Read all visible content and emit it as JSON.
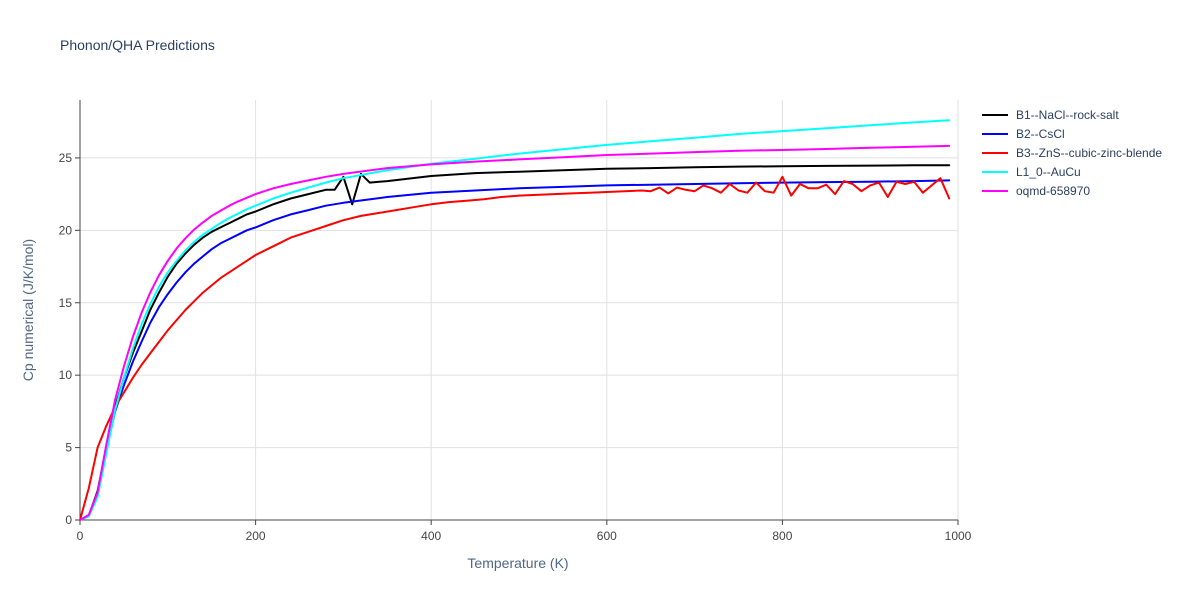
{
  "chart_data": {
    "type": "line",
    "title": "Phonon/QHA Predictions",
    "xlabel": "Temperature (K)",
    "ylabel": "Cp numerical (J/K/mol)",
    "xlim": [
      0,
      1000
    ],
    "ylim": [
      0,
      29
    ],
    "xticks": [
      0,
      200,
      400,
      600,
      800,
      1000
    ],
    "yticks": [
      0,
      5,
      10,
      15,
      20,
      25
    ],
    "xtick_labels": [
      "0",
      "200",
      "400",
      "600",
      "800",
      "1000"
    ],
    "ytick_labels": [
      "0",
      "5",
      "10",
      "15",
      "20",
      "25"
    ],
    "grid": true,
    "legend_position": "top-right, outside plot",
    "series": [
      {
        "name": "B1--NaCl--rock-salt",
        "color": "#000000",
        "points": [
          [
            0,
            0
          ],
          [
            10,
            0.3
          ],
          [
            20,
            2
          ],
          [
            30,
            5
          ],
          [
            40,
            7.8
          ],
          [
            50,
            9.8
          ],
          [
            60,
            11.5
          ],
          [
            70,
            13
          ],
          [
            80,
            14.5
          ],
          [
            90,
            15.7
          ],
          [
            100,
            16.8
          ],
          [
            110,
            17.7
          ],
          [
            120,
            18.4
          ],
          [
            130,
            19
          ],
          [
            140,
            19.5
          ],
          [
            150,
            19.9
          ],
          [
            160,
            20.2
          ],
          [
            170,
            20.5
          ],
          [
            180,
            20.8
          ],
          [
            190,
            21.1
          ],
          [
            200,
            21.3
          ],
          [
            220,
            21.8
          ],
          [
            240,
            22.2
          ],
          [
            260,
            22.5
          ],
          [
            280,
            22.8
          ],
          [
            290,
            22.8
          ],
          [
            300,
            23.7
          ],
          [
            310,
            21.8
          ],
          [
            320,
            23.9
          ],
          [
            330,
            23.3
          ],
          [
            350,
            23.4
          ],
          [
            400,
            23.75
          ],
          [
            450,
            23.95
          ],
          [
            500,
            24.05
          ],
          [
            550,
            24.15
          ],
          [
            600,
            24.25
          ],
          [
            650,
            24.3
          ],
          [
            700,
            24.35
          ],
          [
            750,
            24.4
          ],
          [
            800,
            24.42
          ],
          [
            850,
            24.45
          ],
          [
            900,
            24.47
          ],
          [
            950,
            24.49
          ],
          [
            990,
            24.5
          ]
        ]
      },
      {
        "name": "B2--CsCl",
        "color": "#0000ff",
        "points": [
          [
            0,
            0
          ],
          [
            10,
            0.3
          ],
          [
            20,
            1.8
          ],
          [
            30,
            4.8
          ],
          [
            40,
            7.5
          ],
          [
            50,
            9.3
          ],
          [
            60,
            10.9
          ],
          [
            70,
            12.3
          ],
          [
            80,
            13.6
          ],
          [
            90,
            14.7
          ],
          [
            100,
            15.6
          ],
          [
            110,
            16.4
          ],
          [
            120,
            17.1
          ],
          [
            130,
            17.7
          ],
          [
            140,
            18.2
          ],
          [
            150,
            18.7
          ],
          [
            160,
            19.1
          ],
          [
            170,
            19.4
          ],
          [
            180,
            19.7
          ],
          [
            190,
            20
          ],
          [
            200,
            20.2
          ],
          [
            220,
            20.7
          ],
          [
            240,
            21.1
          ],
          [
            260,
            21.4
          ],
          [
            280,
            21.7
          ],
          [
            300,
            21.9
          ],
          [
            350,
            22.3
          ],
          [
            400,
            22.6
          ],
          [
            450,
            22.75
          ],
          [
            500,
            22.9
          ],
          [
            550,
            23
          ],
          [
            600,
            23.1
          ],
          [
            650,
            23.15
          ],
          [
            700,
            23.2
          ],
          [
            750,
            23.25
          ],
          [
            800,
            23.3
          ],
          [
            850,
            23.33
          ],
          [
            900,
            23.36
          ],
          [
            950,
            23.4
          ],
          [
            990,
            23.45
          ]
        ]
      },
      {
        "name": "B3--ZnS--cubic-zinc-blende",
        "color": "#ff0000",
        "points": [
          [
            0,
            0
          ],
          [
            10,
            2.2
          ],
          [
            20,
            5
          ],
          [
            30,
            6.5
          ],
          [
            40,
            7.8
          ],
          [
            50,
            8.8
          ],
          [
            60,
            9.8
          ],
          [
            70,
            10.7
          ],
          [
            80,
            11.5
          ],
          [
            90,
            12.3
          ],
          [
            100,
            13.1
          ],
          [
            110,
            13.8
          ],
          [
            120,
            14.5
          ],
          [
            130,
            15.1
          ],
          [
            140,
            15.7
          ],
          [
            150,
            16.2
          ],
          [
            160,
            16.7
          ],
          [
            170,
            17.1
          ],
          [
            180,
            17.5
          ],
          [
            190,
            17.9
          ],
          [
            200,
            18.3
          ],
          [
            220,
            18.9
          ],
          [
            240,
            19.5
          ],
          [
            260,
            19.9
          ],
          [
            280,
            20.3
          ],
          [
            300,
            20.7
          ],
          [
            320,
            21
          ],
          [
            340,
            21.2
          ],
          [
            360,
            21.4
          ],
          [
            380,
            21.6
          ],
          [
            400,
            21.8
          ],
          [
            420,
            21.95
          ],
          [
            440,
            22.05
          ],
          [
            460,
            22.15
          ],
          [
            480,
            22.3
          ],
          [
            500,
            22.4
          ],
          [
            520,
            22.45
          ],
          [
            540,
            22.5
          ],
          [
            560,
            22.55
          ],
          [
            580,
            22.6
          ],
          [
            600,
            22.65
          ],
          [
            620,
            22.7
          ],
          [
            640,
            22.75
          ],
          [
            650,
            22.7
          ],
          [
            660,
            22.95
          ],
          [
            670,
            22.55
          ],
          [
            680,
            22.95
          ],
          [
            690,
            22.8
          ],
          [
            700,
            22.7
          ],
          [
            710,
            23.1
          ],
          [
            720,
            22.9
          ],
          [
            730,
            22.6
          ],
          [
            740,
            23.2
          ],
          [
            750,
            22.75
          ],
          [
            760,
            22.6
          ],
          [
            770,
            23.3
          ],
          [
            780,
            22.7
          ],
          [
            790,
            22.6
          ],
          [
            800,
            23.7
          ],
          [
            810,
            22.4
          ],
          [
            820,
            23.2
          ],
          [
            830,
            22.9
          ],
          [
            840,
            22.9
          ],
          [
            850,
            23.15
          ],
          [
            860,
            22.5
          ],
          [
            870,
            23.4
          ],
          [
            880,
            23.2
          ],
          [
            890,
            22.7
          ],
          [
            900,
            23.1
          ],
          [
            910,
            23.3
          ],
          [
            920,
            22.3
          ],
          [
            930,
            23.35
          ],
          [
            940,
            23.2
          ],
          [
            950,
            23.35
          ],
          [
            960,
            22.6
          ],
          [
            970,
            23.1
          ],
          [
            980,
            23.6
          ],
          [
            990,
            22.2
          ]
        ]
      },
      {
        "name": "L1_0--AuCu",
        "color": "#00ffff",
        "points": [
          [
            0,
            0
          ],
          [
            10,
            0.25
          ],
          [
            20,
            1.6
          ],
          [
            30,
            4.6
          ],
          [
            40,
            7.6
          ],
          [
            50,
            9.8
          ],
          [
            60,
            11.8
          ],
          [
            70,
            13.5
          ],
          [
            80,
            14.9
          ],
          [
            90,
            16.1
          ],
          [
            100,
            17.1
          ],
          [
            110,
            17.9
          ],
          [
            120,
            18.6
          ],
          [
            130,
            19.2
          ],
          [
            140,
            19.7
          ],
          [
            150,
            20.1
          ],
          [
            160,
            20.5
          ],
          [
            170,
            20.85
          ],
          [
            180,
            21.15
          ],
          [
            190,
            21.45
          ],
          [
            200,
            21.7
          ],
          [
            220,
            22.2
          ],
          [
            240,
            22.6
          ],
          [
            260,
            22.95
          ],
          [
            280,
            23.3
          ],
          [
            300,
            23.6
          ],
          [
            350,
            24.15
          ],
          [
            400,
            24.6
          ],
          [
            450,
            24.95
          ],
          [
            500,
            25.3
          ],
          [
            550,
            25.6
          ],
          [
            600,
            25.9
          ],
          [
            650,
            26.15
          ],
          [
            700,
            26.4
          ],
          [
            750,
            26.65
          ],
          [
            800,
            26.85
          ],
          [
            850,
            27.05
          ],
          [
            900,
            27.25
          ],
          [
            950,
            27.45
          ],
          [
            990,
            27.6
          ]
        ]
      },
      {
        "name": "oqmd-658970",
        "color": "#ff00ff",
        "points": [
          [
            0,
            0
          ],
          [
            10,
            0.35
          ],
          [
            20,
            1.9
          ],
          [
            30,
            5.2
          ],
          [
            40,
            8.3
          ],
          [
            50,
            10.6
          ],
          [
            60,
            12.6
          ],
          [
            70,
            14.3
          ],
          [
            80,
            15.7
          ],
          [
            90,
            16.9
          ],
          [
            100,
            17.9
          ],
          [
            110,
            18.75
          ],
          [
            120,
            19.45
          ],
          [
            130,
            20.05
          ],
          [
            140,
            20.55
          ],
          [
            150,
            21
          ],
          [
            160,
            21.35
          ],
          [
            170,
            21.7
          ],
          [
            180,
            22
          ],
          [
            190,
            22.25
          ],
          [
            200,
            22.5
          ],
          [
            220,
            22.9
          ],
          [
            240,
            23.2
          ],
          [
            260,
            23.45
          ],
          [
            280,
            23.7
          ],
          [
            300,
            23.9
          ],
          [
            350,
            24.3
          ],
          [
            400,
            24.55
          ],
          [
            450,
            24.75
          ],
          [
            500,
            24.9
          ],
          [
            550,
            25.05
          ],
          [
            600,
            25.2
          ],
          [
            650,
            25.3
          ],
          [
            700,
            25.4
          ],
          [
            750,
            25.5
          ],
          [
            800,
            25.55
          ],
          [
            850,
            25.62
          ],
          [
            900,
            25.7
          ],
          [
            950,
            25.77
          ],
          [
            990,
            25.83
          ]
        ]
      }
    ]
  }
}
